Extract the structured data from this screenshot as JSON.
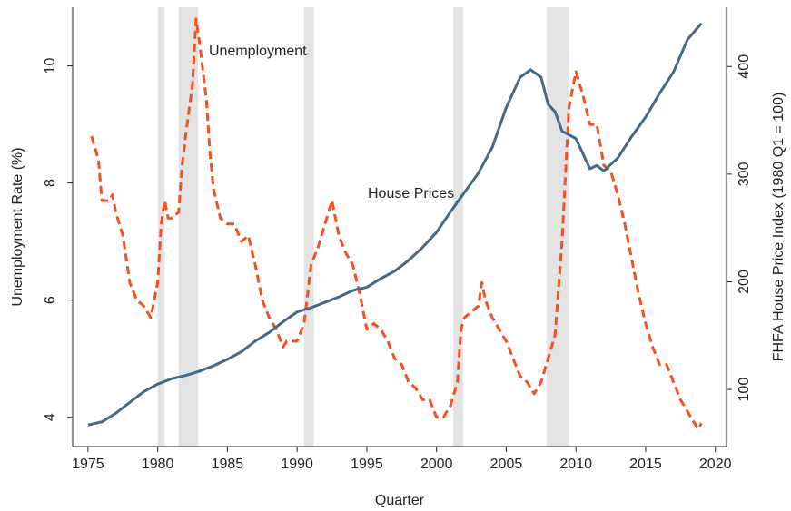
{
  "chart_data": {
    "type": "line",
    "x_label": "Quarter",
    "y_label": "Unemployment Rate (%)",
    "y2_label": "FHFA House Price Index (1980 Q1 = 100)",
    "annotations": [
      "Unemployment",
      "House Prices"
    ],
    "xlim": [
      1973.9,
      2020.8
    ],
    "xticks": [
      1975,
      1980,
      1985,
      1990,
      1995,
      2000,
      2005,
      2010,
      2015,
      2020
    ],
    "ylim": [
      3.5,
      11
    ],
    "yticks": [
      4,
      6,
      8,
      10
    ],
    "y2lim": [
      47,
      455
    ],
    "y2ticks": [
      100,
      200,
      300,
      400
    ],
    "grid": false,
    "recessions": [
      [
        1980.0,
        1980.5
      ],
      [
        1981.5,
        1982.9
      ],
      [
        1990.5,
        1991.2
      ],
      [
        2001.2,
        2001.9
      ],
      [
        2007.9,
        2009.5
      ]
    ],
    "recession_color": "#e3e3e3",
    "series": [
      {
        "name": "Unemployment",
        "color": "#f4511e",
        "dashed": true,
        "axis": "y",
        "x": [
          1975.25,
          1975.75,
          1976.0,
          1976.5,
          1976.75,
          1977.0,
          1977.5,
          1978.0,
          1978.5,
          1979.0,
          1979.5,
          1980.0,
          1980.25,
          1980.5,
          1980.75,
          1981.0,
          1981.5,
          1981.75,
          1982.0,
          1982.5,
          1982.75,
          1983.0,
          1983.5,
          1983.75,
          1984.0,
          1984.5,
          1985.0,
          1985.5,
          1986.0,
          1986.5,
          1987.0,
          1987.5,
          1988.0,
          1988.5,
          1989.0,
          1989.25,
          1989.75,
          1990.0,
          1990.5,
          1991.0,
          1991.5,
          1992.0,
          1992.5,
          1993.0,
          1993.5,
          1994.0,
          1994.5,
          1995.0,
          1995.5,
          1996.0,
          1996.5,
          1997.0,
          1997.5,
          1998.0,
          1998.5,
          1999.0,
          1999.5,
          2000.0,
          2000.5,
          2001.0,
          2001.5,
          2001.75,
          2002.0,
          2002.5,
          2003.0,
          2003.25,
          2003.5,
          2004.0,
          2004.5,
          2005.0,
          2005.5,
          2006.0,
          2006.5,
          2007.0,
          2007.5,
          2008.0,
          2008.5,
          2009.0,
          2009.5,
          2010.0,
          2010.5,
          2011.0,
          2011.5,
          2012.0,
          2012.5,
          2013.0,
          2013.5,
          2014.0,
          2014.5,
          2015.0,
          2015.5,
          2016.0,
          2016.5,
          2017.0,
          2017.5,
          2018.0,
          2018.5,
          2018.75,
          2019.0
        ],
        "values": [
          8.8,
          8.4,
          7.7,
          7.7,
          7.8,
          7.5,
          7.1,
          6.3,
          6.0,
          5.9,
          5.7,
          6.3,
          7.3,
          7.7,
          7.4,
          7.4,
          7.5,
          8.3,
          8.8,
          9.7,
          10.8,
          10.4,
          9.4,
          8.5,
          7.9,
          7.4,
          7.3,
          7.3,
          7.0,
          7.1,
          6.6,
          6.0,
          5.7,
          5.5,
          5.2,
          5.3,
          5.3,
          5.3,
          5.6,
          6.6,
          6.9,
          7.3,
          7.7,
          7.1,
          6.8,
          6.6,
          6.1,
          5.5,
          5.6,
          5.5,
          5.3,
          5.0,
          4.9,
          4.6,
          4.5,
          4.3,
          4.3,
          4.0,
          4.0,
          4.2,
          4.6,
          5.5,
          5.7,
          5.8,
          5.9,
          6.3,
          6.0,
          5.7,
          5.5,
          5.3,
          5.0,
          4.7,
          4.6,
          4.4,
          4.6,
          5.0,
          5.4,
          7.0,
          9.3,
          9.9,
          9.5,
          9.0,
          9.0,
          8.3,
          8.2,
          7.8,
          7.3,
          6.7,
          6.1,
          5.6,
          5.2,
          4.9,
          4.9,
          4.6,
          4.3,
          4.1,
          3.9,
          3.8,
          3.9
        ]
      },
      {
        "name": "House Prices",
        "color": "#456a85",
        "dashed": false,
        "axis": "y2",
        "x": [
          1975.0,
          1976.0,
          1977.0,
          1978.0,
          1979.0,
          1980.0,
          1981.0,
          1982.0,
          1983.0,
          1984.0,
          1985.0,
          1986.0,
          1987.0,
          1988.0,
          1989.0,
          1990.0,
          1991.0,
          1992.0,
          1993.0,
          1994.0,
          1995.0,
          1996.0,
          1997.0,
          1998.0,
          1999.0,
          2000.0,
          2001.0,
          2002.0,
          2003.0,
          2004.0,
          2005.0,
          2006.0,
          2006.75,
          2007.5,
          2008.0,
          2008.5,
          2009.0,
          2010.0,
          2011.0,
          2011.5,
          2012.0,
          2013.0,
          2014.0,
          2015.0,
          2016.0,
          2017.0,
          2018.0,
          2019.0
        ],
        "values": [
          67,
          70,
          78,
          88,
          98,
          105,
          110,
          113,
          117,
          122,
          128,
          135,
          145,
          153,
          163,
          172,
          176,
          181,
          186,
          192,
          195,
          203,
          210,
          220,
          232,
          246,
          265,
          283,
          301,
          325,
          362,
          390,
          397,
          390,
          365,
          358,
          340,
          333,
          305,
          308,
          303,
          315,
          335,
          353,
          375,
          395,
          425,
          440
        ]
      }
    ]
  }
}
